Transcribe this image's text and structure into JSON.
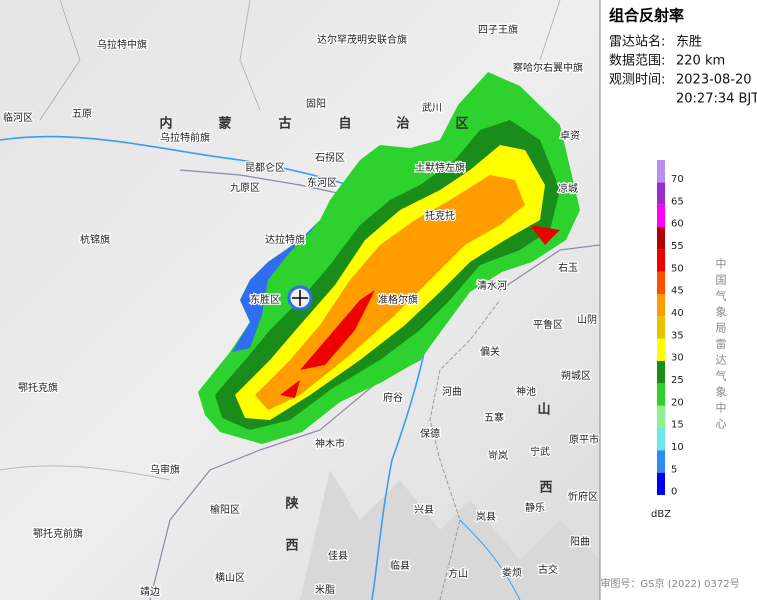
{
  "title": "组合反射率",
  "info": [
    {
      "label": "雷达站名:",
      "value": [
        "东胜"
      ]
    },
    {
      "label": "数据范围:",
      "value": [
        "220 km"
      ]
    },
    {
      "label": "观测时间:",
      "value": [
        "2023-08-20",
        "20:27:34 BJT"
      ]
    }
  ],
  "legend": {
    "ticks": [
      0,
      5,
      10,
      15,
      20,
      25,
      30,
      35,
      40,
      45,
      50,
      55,
      60,
      65,
      70
    ],
    "colors": [
      "#0000f0",
      "#2f8cf0",
      "#6ee6ee",
      "#8ef08e",
      "#2ed22e",
      "#1a8c1a",
      "#ffff00",
      "#e6c400",
      "#ff9c00",
      "#ff5000",
      "#ee0000",
      "#b40000",
      "#ff00ff",
      "#9c2ccc",
      "#b890f0"
    ],
    "unit": "dBZ"
  },
  "agency": "中国气象局雷达气象中心",
  "approval": "审图号：GS京 (2022) 0372号",
  "map_labels": [
    "乌拉特中旗",
    "达尔罕茂明安联合旗",
    "四子王旗",
    "察哈尔右翼中旗",
    "临河区",
    "五原",
    "固阳",
    "武川",
    "内",
    "蒙",
    "古",
    "自",
    "治",
    "区",
    "乌拉特前旗",
    "卓资",
    "昆都仑区",
    "石拐区",
    "九原区",
    "东河区",
    "土默特左旗",
    "凉城",
    "杭锦旗",
    "达拉特旗",
    "托克托",
    "右玉",
    "清水河",
    "东胜区",
    "准格尔旗",
    "平鲁区",
    "山阴",
    "偏关",
    "朔城区",
    "鄂托克旗",
    "府谷",
    "河曲",
    "神池",
    "五寨",
    "山",
    "神木市",
    "保德",
    "原平市",
    "岢岚",
    "宁武",
    "乌审旗",
    "西",
    "兴县",
    "岚县",
    "静乐",
    "忻府区",
    "榆阳区",
    "陕",
    "西",
    "鄂托克前旗",
    "阳曲",
    "佳县",
    "临县",
    "方山",
    "娄烦",
    "古交",
    "横山区",
    "靖边",
    "米脂"
  ]
}
